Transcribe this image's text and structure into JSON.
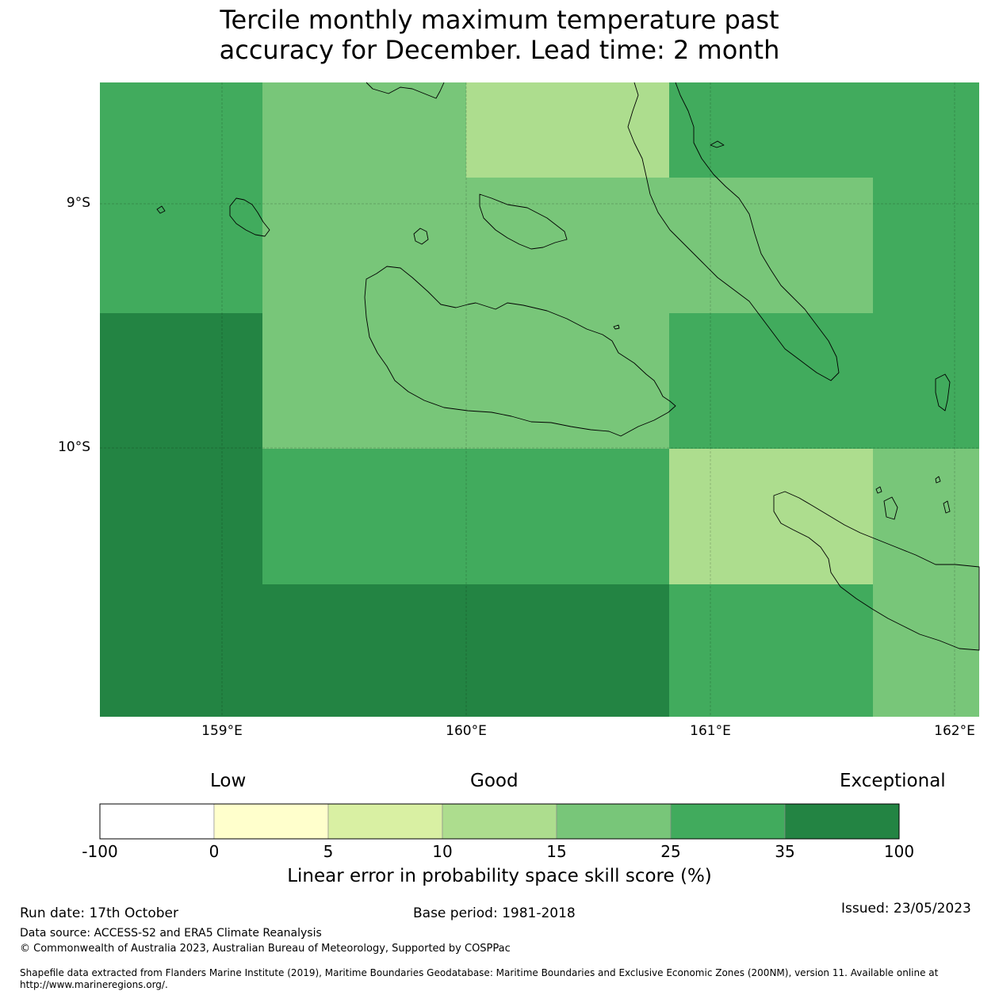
{
  "title_line1": "Tercile monthly maximum temperature past",
  "title_line2": "accuracy for December. Lead time: 2 month",
  "map": {
    "lat_labels": [
      "9°S",
      "10°S"
    ],
    "lon_labels": [
      "159°E",
      "160°E",
      "161°E",
      "162°E"
    ],
    "grid_cells_score_band": [
      [
        "25-35",
        "15-25",
        "10-15",
        "25-35",
        "25-35"
      ],
      [
        "25-35",
        "15-25",
        "15-25",
        "15-25",
        "25-35"
      ],
      [
        "35-100",
        "15-25",
        "15-25",
        "25-35",
        "25-35"
      ],
      [
        "35-100",
        "25-35",
        "25-35",
        "10-15",
        "15-25"
      ],
      [
        "35-100",
        "35-100",
        "35-100",
        "25-35",
        "15-25"
      ]
    ]
  },
  "colorbar": {
    "categories": [
      "Low",
      "Good",
      "Exceptional"
    ],
    "ticks": [
      "-100",
      "0",
      "5",
      "10",
      "15",
      "25",
      "35",
      "100"
    ],
    "colors": [
      "#ffffff",
      "#ffffcc",
      "#d9f0a3",
      "#addd8e",
      "#78c679",
      "#41ab5d",
      "#238443"
    ],
    "label": "Linear error in probability space skill score (%)"
  },
  "footer": {
    "run_date": "Run date: 17th October",
    "base_period": "Base period: 1981-2018",
    "issued": "Issued: 23/05/2023",
    "data_source": "Data source: ACCESS-S2 and ERA5 Climate Reanalysis",
    "copyright": "© Commonwealth of Australia 2023, Australian Bureau of Meteorology, Supported by COSPPac",
    "shapefile_line1": "Shapefile data extracted from Flanders Marine Institute (2019), Maritime Boundaries Geodatabase: Maritime Boundaries and Exclusive Economic Zones (200NM), version 11. Available online at",
    "shapefile_line2": "http://www.marineregions.org/."
  }
}
